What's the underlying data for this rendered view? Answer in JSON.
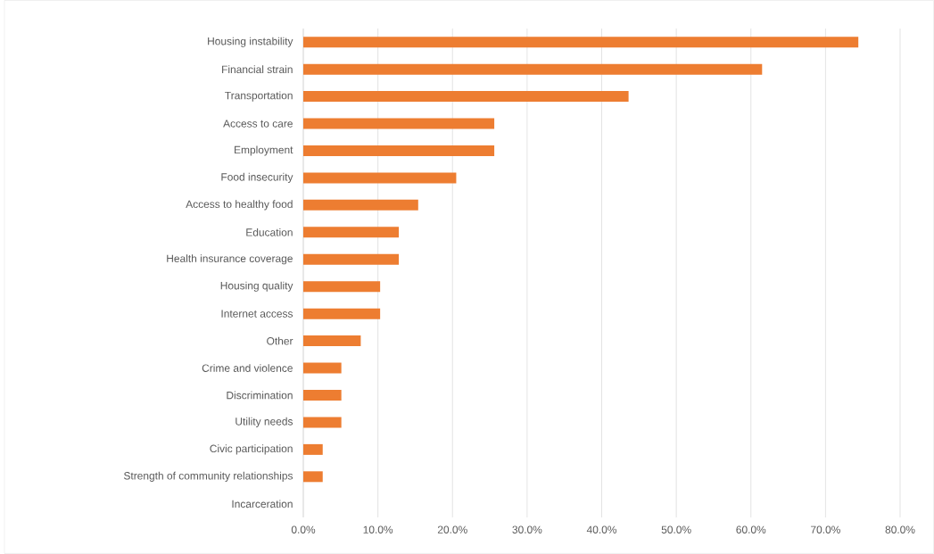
{
  "chart_data": {
    "type": "bar",
    "orientation": "horizontal",
    "categories": [
      "Housing instability",
      "Financial strain",
      "Transportation",
      "Access to care",
      "Employment",
      "Food insecurity",
      "Access to healthy food",
      "Education",
      "Health insurance coverage",
      "Housing quality",
      "Internet access",
      "Other",
      "Crime and violence",
      "Discrimination",
      "Utility needs",
      "Civic participation",
      "Strength of community relationships",
      "Incarceration"
    ],
    "values": [
      74.4,
      61.5,
      43.6,
      25.6,
      25.6,
      20.5,
      15.4,
      12.8,
      12.8,
      10.3,
      10.3,
      7.7,
      5.1,
      5.1,
      5.1,
      2.6,
      2.6,
      0
    ],
    "color": "#ed7d31",
    "xlim": [
      0,
      80
    ],
    "xticks": [
      {
        "value": 0,
        "label": "0.0%"
      },
      {
        "value": 10,
        "label": "10.0%"
      },
      {
        "value": 20,
        "label": "20.0%"
      },
      {
        "value": 30,
        "label": "30.0%"
      },
      {
        "value": 40,
        "label": "40.0%"
      },
      {
        "value": 50,
        "label": "50.0%"
      },
      {
        "value": 60,
        "label": "60.0%"
      },
      {
        "value": 70,
        "label": "70.0%"
      },
      {
        "value": 80,
        "label": "80.0%"
      }
    ],
    "grid": "x"
  }
}
